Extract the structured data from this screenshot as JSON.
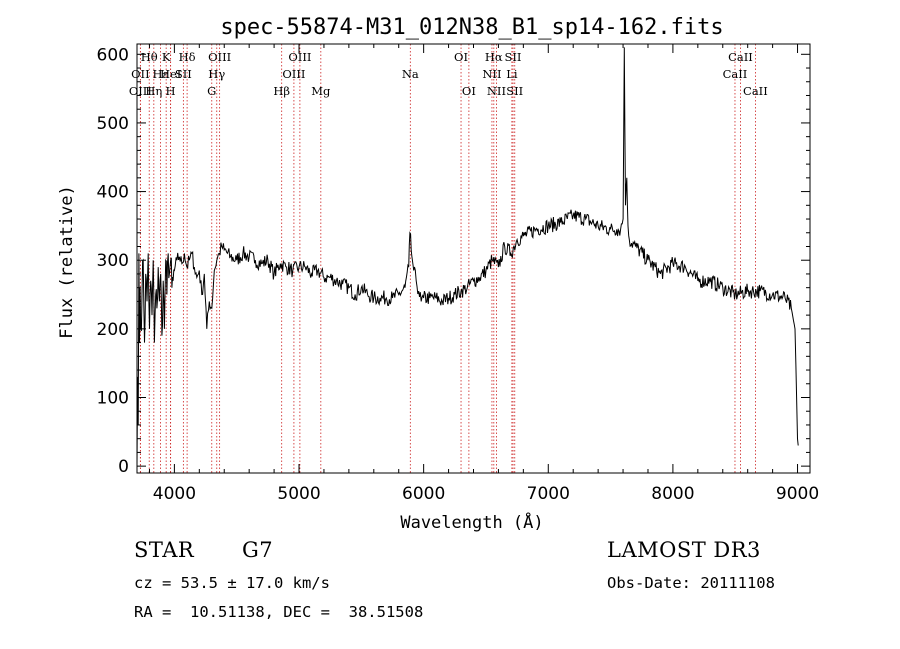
{
  "chart_data": {
    "type": "line",
    "title": "spec-55874-M31_012N38_B1_sp14-162.fits",
    "xlabel": "Wavelength (Å)",
    "ylabel": "Flux (relative)",
    "xlim": [
      3700,
      9100
    ],
    "ylim": [
      -10,
      615
    ],
    "x_ticks": [
      4000,
      5000,
      6000,
      7000,
      8000,
      9000
    ],
    "y_ticks": [
      0,
      100,
      200,
      300,
      400,
      500,
      600
    ],
    "grid": false,
    "line_color": "#000000",
    "marker_color": "#cc2222",
    "series": [
      {
        "x": [
          3700,
          3705,
          3710,
          3715,
          3720,
          3725,
          3730,
          3740,
          3750,
          3760,
          3770,
          3780,
          3790,
          3800,
          3810,
          3820,
          3830,
          3840,
          3850,
          3860,
          3870,
          3880,
          3890,
          3900,
          3910,
          3920,
          3930,
          3940,
          3950,
          3960,
          3970,
          3980,
          3990,
          4000,
          4020,
          4040,
          4060,
          4080,
          4100,
          4120,
          4140,
          4160,
          4180,
          4200,
          4220,
          4240,
          4260,
          4280,
          4300,
          4320,
          4340,
          4360,
          4380,
          4400,
          4450,
          4500,
          4550,
          4600,
          4650,
          4700,
          4750,
          4800,
          4850,
          4900,
          4950,
          5000,
          5050,
          5100,
          5150,
          5200,
          5250,
          5300,
          5350,
          5400,
          5450,
          5500,
          5550,
          5600,
          5650,
          5700,
          5750,
          5800,
          5850,
          5880,
          5890,
          5900,
          5910,
          5920,
          5940,
          5960,
          5980,
          6000,
          6050,
          6100,
          6150,
          6200,
          6250,
          6300,
          6350,
          6400,
          6450,
          6500,
          6550,
          6600,
          6650,
          6700,
          6750,
          6800,
          6900,
          7000,
          7100,
          7200,
          7300,
          7400,
          7500,
          7550,
          7580,
          7600,
          7610,
          7620,
          7630,
          7640,
          7650,
          7700,
          7800,
          7900,
          8000,
          8100,
          8200,
          8300,
          8400,
          8500,
          8600,
          8700,
          8800,
          8900,
          8950,
          8980,
          9000,
          9005
        ],
        "y": [
          0,
          130,
          60,
          310,
          180,
          260,
          200,
          250,
          300,
          180,
          280,
          240,
          310,
          200,
          270,
          220,
          300,
          180,
          250,
          230,
          290,
          240,
          280,
          190,
          270,
          200,
          300,
          250,
          310,
          280,
          300,
          260,
          270,
          285,
          300,
          305,
          295,
          310,
          290,
          300,
          310,
          290,
          275,
          285,
          250,
          280,
          200,
          240,
          230,
          285,
          300,
          310,
          320,
          315,
          305,
          300,
          310,
          305,
          300,
          295,
          300,
          280,
          295,
          290,
          285,
          290,
          290,
          280,
          285,
          275,
          275,
          270,
          265,
          260,
          250,
          260,
          250,
          245,
          245,
          245,
          245,
          250,
          260,
          290,
          340,
          315,
          300,
          285,
          270,
          255,
          240,
          245,
          245,
          245,
          240,
          245,
          250,
          255,
          260,
          270,
          275,
          285,
          300,
          290,
          320,
          310,
          330,
          335,
          345,
          350,
          355,
          365,
          360,
          350,
          345,
          345,
          345,
          360,
          610,
          380,
          420,
          350,
          330,
          320,
          300,
          280,
          295,
          290,
          270,
          270,
          260,
          250,
          255,
          255,
          250,
          245,
          230,
          200,
          40,
          30
        ]
      }
    ],
    "lines": [
      {
        "name": "Hθ",
        "wavelength": 3798,
        "row": 1
      },
      {
        "name": "OII",
        "wavelength": 3727,
        "row": 2
      },
      {
        "name": "OIII",
        "wavelength": 3727,
        "row": 3
      },
      {
        "name": "K",
        "wavelength": 3934,
        "row": 1
      },
      {
        "name": "Hε",
        "wavelength": 3889,
        "row": 2
      },
      {
        "name": "Hη",
        "wavelength": 3835,
        "row": 3
      },
      {
        "name": "H",
        "wavelength": 3969,
        "row": 3
      },
      {
        "name": "HeI",
        "wavelength": 3970,
        "row": 2
      },
      {
        "name": "SII",
        "wavelength": 4072,
        "row": 2
      },
      {
        "name": "Hδ",
        "wavelength": 4102,
        "row": 1
      },
      {
        "name": "OIII",
        "wavelength": 4363,
        "row": 1
      },
      {
        "name": "Hγ",
        "wavelength": 4340,
        "row": 2
      },
      {
        "name": "G",
        "wavelength": 4300,
        "row": 3
      },
      {
        "name": "OIII",
        "wavelength": 5007,
        "row": 1
      },
      {
        "name": "OIII",
        "wavelength": 4959,
        "row": 2
      },
      {
        "name": "Hβ",
        "wavelength": 4861,
        "row": 3
      },
      {
        "name": "Mg",
        "wavelength": 5175,
        "row": 3
      },
      {
        "name": "Na",
        "wavelength": 5893,
        "row": 2
      },
      {
        "name": "OI",
        "wavelength": 6300,
        "row": 1
      },
      {
        "name": "OI",
        "wavelength": 6363,
        "row": 3
      },
      {
        "name": "Hα",
        "wavelength": 6563,
        "row": 1
      },
      {
        "name": "NII",
        "wavelength": 6548,
        "row": 2
      },
      {
        "name": "NII",
        "wavelength": 6584,
        "row": 3
      },
      {
        "name": "SII",
        "wavelength": 6717,
        "row": 1
      },
      {
        "name": "Li",
        "wavelength": 6708,
        "row": 2
      },
      {
        "name": "SII",
        "wavelength": 6731,
        "row": 3
      },
      {
        "name": "CaII",
        "wavelength": 8542,
        "row": 1
      },
      {
        "name": "CaII",
        "wavelength": 8498,
        "row": 2
      },
      {
        "name": "CaII",
        "wavelength": 8662,
        "row": 3
      }
    ]
  },
  "footer": {
    "class_label": "STAR",
    "subclass": "G7",
    "survey": "LAMOST DR3",
    "redshift_text": "cz = 53.5 ± 17.0 km/s",
    "obs_date_text": "Obs-Date: 20111108",
    "coords_text": "RA =  10.51138, DEC =  38.51508"
  }
}
